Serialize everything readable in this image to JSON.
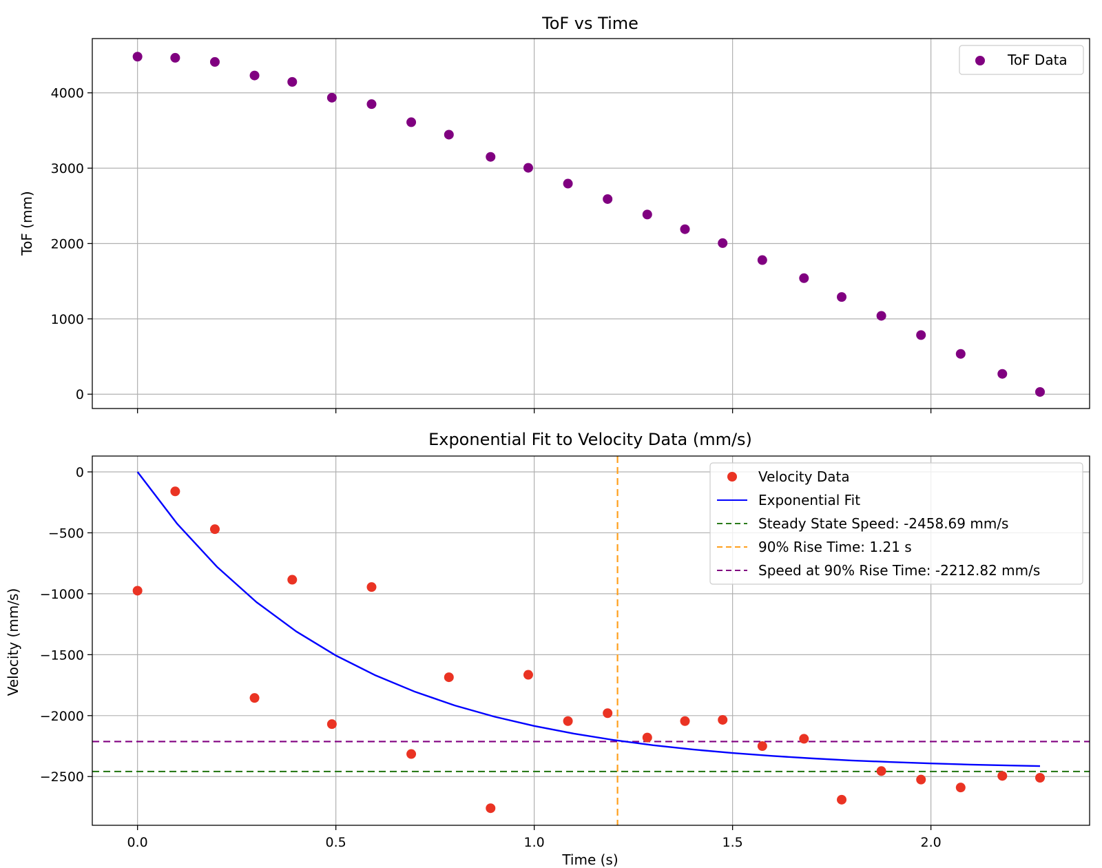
{
  "chart_data": [
    {
      "type": "scatter",
      "title": "ToF vs Time",
      "xlabel": "",
      "ylabel": "ToF (mm)",
      "xlim": [
        -0.114,
        2.4
      ],
      "ylim": [
        -190,
        4720
      ],
      "xticks": [
        0.0,
        0.5,
        1.0,
        1.5,
        2.0
      ],
      "xtick_labels_visible": false,
      "yticks": [
        0,
        1000,
        2000,
        3000,
        4000
      ],
      "ytick_labels": [
        "0",
        "1000",
        "2000",
        "3000",
        "4000"
      ],
      "grid": true,
      "legend_position": "upper right",
      "series": [
        {
          "name": "ToF Data",
          "color": "#800080",
          "marker": "circle",
          "x": [
            0.0,
            0.095,
            0.195,
            0.295,
            0.39,
            0.49,
            0.59,
            0.69,
            0.785,
            0.89,
            0.985,
            1.085,
            1.185,
            1.285,
            1.38,
            1.475,
            1.575,
            1.68,
            1.775,
            1.875,
            1.975,
            2.075,
            2.18,
            2.275
          ],
          "y": [
            4480,
            4465,
            4410,
            4230,
            4145,
            3935,
            3850,
            3610,
            3445,
            3150,
            3005,
            2795,
            2590,
            2385,
            2190,
            2005,
            1780,
            1540,
            1290,
            1040,
            785,
            535,
            270,
            30
          ]
        }
      ]
    },
    {
      "type": "scatter",
      "title": "Exponential Fit to Velocity Data (mm/s)",
      "xlabel": "Time (s)",
      "ylabel": "Velocity (mm/s)",
      "xlim": [
        -0.114,
        2.4
      ],
      "ylim": [
        -2900,
        130
      ],
      "xticks": [
        0.0,
        0.5,
        1.0,
        1.5,
        2.0
      ],
      "xtick_labels": [
        "0.0",
        "0.5",
        "1.0",
        "1.5",
        "2.0"
      ],
      "yticks": [
        0,
        -500,
        -1000,
        -1500,
        -2000,
        -2500
      ],
      "ytick_labels": [
        "0",
        "−500",
        "−1000",
        "−1500",
        "−2000",
        "−2500"
      ],
      "grid": true,
      "legend_position": "upper right",
      "series": [
        {
          "name": "Velocity Data",
          "type": "scatter",
          "color": "#ea3323",
          "x": [
            0.0,
            0.095,
            0.195,
            0.295,
            0.39,
            0.49,
            0.59,
            0.69,
            0.785,
            0.89,
            0.985,
            1.085,
            1.185,
            1.285,
            1.38,
            1.475,
            1.575,
            1.68,
            1.775,
            1.875,
            1.975,
            2.075,
            2.18,
            2.275
          ],
          "y": [
            -975,
            -160,
            -470,
            -1855,
            -885,
            -2070,
            -945,
            -2315,
            -1685,
            -2760,
            -1665,
            -2045,
            -1980,
            -2180,
            -2045,
            -2035,
            -2250,
            -2190,
            -2690,
            -2455,
            -2525,
            -2590,
            -2495,
            -2510
          ]
        },
        {
          "name": "Exponential Fit",
          "type": "line",
          "color": "#0000ff",
          "model": "v(t) = -2458.69 * (1 - exp(-t / 0.526))",
          "x": [
            0.0,
            0.1,
            0.2,
            0.3,
            0.4,
            0.5,
            0.6,
            0.7,
            0.8,
            0.9,
            1.0,
            1.1,
            1.2,
            1.3,
            1.4,
            1.5,
            1.6,
            1.7,
            1.8,
            1.9,
            2.0,
            2.1,
            2.2,
            2.275
          ],
          "y": [
            0,
            -426,
            -778,
            -1069,
            -1309,
            -1507,
            -1670,
            -1805,
            -1917,
            -2009,
            -2085,
            -2148,
            -2200,
            -2243,
            -2278,
            -2307,
            -2331,
            -2351,
            -2368,
            -2381,
            -2392,
            -2402,
            -2409,
            -2414
          ]
        },
        {
          "name": "Steady State Speed: -2458.69 mm/s",
          "type": "hline",
          "style": "dashed",
          "color": "#2a7a1a",
          "y": -2458.69
        },
        {
          "name": "90% Rise Time: 1.21 s",
          "type": "vline",
          "style": "dashed",
          "color": "#ff9f1c",
          "x": 1.21
        },
        {
          "name": "Speed at 90% Rise Time: -2212.82 mm/s",
          "type": "hline",
          "style": "dashed",
          "color": "#800080",
          "y": -2212.82
        }
      ]
    }
  ]
}
